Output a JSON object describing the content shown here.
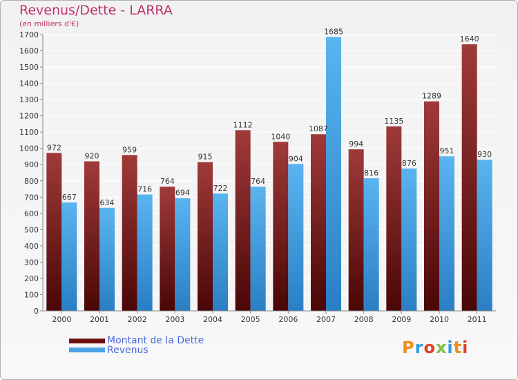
{
  "header": {
    "title": "Revenus/Dette - LARRA",
    "subtitle": "(en milliers d'€)"
  },
  "chart_data": {
    "type": "bar",
    "categories": [
      "2000",
      "2001",
      "2002",
      "2003",
      "2004",
      "2005",
      "2006",
      "2007",
      "2008",
      "2009",
      "2010",
      "2011"
    ],
    "series": [
      {
        "name": "Montant de la Dette",
        "values": [
          972,
          920,
          959,
          764,
          915,
          1112,
          1040,
          1087,
          994,
          1135,
          1289,
          1640
        ],
        "color": "#7a1c1c"
      },
      {
        "name": "Revenus",
        "values": [
          667,
          634,
          716,
          694,
          722,
          764,
          904,
          1685,
          816,
          876,
          951,
          930
        ],
        "color": "#4aa3e6"
      }
    ],
    "ylim": [
      0,
      1700
    ],
    "yticks": [
      0,
      100,
      200,
      300,
      400,
      500,
      600,
      700,
      800,
      900,
      1000,
      1100,
      1200,
      1300,
      1400,
      1500,
      1600,
      1700
    ],
    "grid": true,
    "legend_position": "bottom-left"
  },
  "legend": {
    "items": [
      {
        "label": "Montant de la Dette",
        "color": "#6b0f0f"
      },
      {
        "label": "Revenus",
        "color": "#4aa3e6"
      }
    ]
  },
  "logo": {
    "text": "Proxiti",
    "letter_colors": [
      "#f28c1a",
      "#2f9be0",
      "#e0402a",
      "#7cc242",
      "#2f9be0",
      "#f28c1a",
      "#e0402a"
    ]
  }
}
